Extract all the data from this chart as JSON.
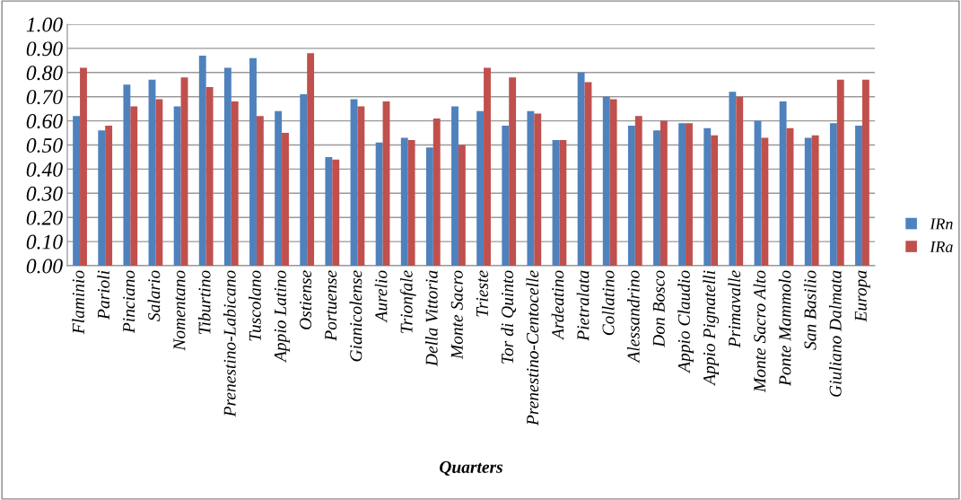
{
  "chart_data": {
    "type": "bar",
    "xlabel": "Quarters",
    "categories": [
      "Flaminio",
      "Parioli",
      "Pinciano",
      "Salario",
      "Nomentano",
      "Tiburtino",
      "Prenestino-Labicano",
      "Tuscolano",
      "Appio Latino",
      "Ostiense",
      "Portuense",
      "Gianicolense",
      "Aurelio",
      "Trionfale",
      "Della Vittoria",
      "Monte Sacro",
      "Trieste",
      "Tor di Quinto",
      "Prenestino-Centocelle",
      "Ardeatino",
      "Pietralata",
      "Collatino",
      "Alessandrino",
      "Don Bosco",
      "Appio Claudio",
      "Appio Pignatelli",
      "Primavalle",
      "Monte Sacro Alto",
      "Ponte Mammolo",
      "San Basilio",
      "Giuliano Dalmata",
      "Europa"
    ],
    "series": [
      {
        "name": "IRn",
        "color": "#4f81bd",
        "values": [
          0.62,
          0.56,
          0.75,
          0.77,
          0.66,
          0.87,
          0.82,
          0.86,
          0.64,
          0.71,
          0.45,
          0.69,
          0.51,
          0.53,
          0.49,
          0.66,
          0.64,
          0.58,
          0.64,
          0.52,
          0.8,
          0.7,
          0.58,
          0.56,
          0.59,
          0.57,
          0.72,
          0.6,
          0.68,
          0.53,
          0.59,
          0.58
        ]
      },
      {
        "name": "IRa",
        "color": "#c0504d",
        "values": [
          0.82,
          0.58,
          0.66,
          0.69,
          0.78,
          0.74,
          0.68,
          0.62,
          0.55,
          0.88,
          0.44,
          0.66,
          0.68,
          0.52,
          0.61,
          0.5,
          0.82,
          0.78,
          0.63,
          0.52,
          0.76,
          0.69,
          0.62,
          0.6,
          0.59,
          0.54,
          0.7,
          0.53,
          0.57,
          0.54,
          0.77,
          0.77
        ]
      }
    ],
    "ylim": [
      0,
      1
    ],
    "yticks": [
      {
        "value": 0,
        "label": "0.00"
      },
      {
        "value": 0.1,
        "label": "0.10"
      },
      {
        "value": 0.2,
        "label": "0.20"
      },
      {
        "value": 0.3,
        "label": "0.30"
      },
      {
        "value": 0.4,
        "label": "0.40"
      },
      {
        "value": 0.5,
        "label": "0.50"
      },
      {
        "value": 0.6,
        "label": "0.60"
      },
      {
        "value": 0.7,
        "label": "0.70"
      },
      {
        "value": 0.8,
        "label": "0.80"
      },
      {
        "value": 0.9,
        "label": "0.90"
      },
      {
        "value": 1,
        "label": "1.00"
      }
    ],
    "grid": "y",
    "legend": "right"
  }
}
